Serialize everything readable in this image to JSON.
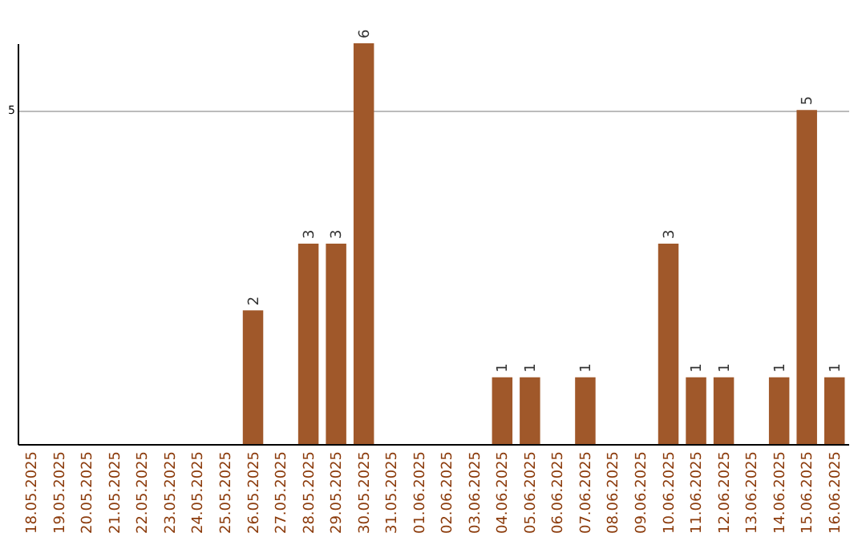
{
  "chart_data": {
    "type": "bar",
    "categories": [
      "18.05.2025",
      "19.05.2025",
      "20.05.2025",
      "21.05.2025",
      "22.05.2025",
      "23.05.2025",
      "24.05.2025",
      "25.05.2025",
      "26.05.2025",
      "27.05.2025",
      "28.05.2025",
      "29.05.2025",
      "30.05.2025",
      "31.05.2025",
      "01.06.2025",
      "02.06.2025",
      "03.06.2025",
      "04.06.2025",
      "05.06.2025",
      "06.06.2025",
      "07.06.2025",
      "08.06.2025",
      "09.06.2025",
      "10.06.2025",
      "11.06.2025",
      "12.06.2025",
      "13.06.2025",
      "14.06.2025",
      "15.06.2025",
      "16.06.2025"
    ],
    "values": [
      0,
      0,
      0,
      0,
      0,
      0,
      0,
      0,
      2,
      0,
      3,
      3,
      6,
      0,
      0,
      0,
      0,
      1,
      1,
      0,
      1,
      0,
      0,
      3,
      1,
      1,
      0,
      1,
      5,
      1
    ],
    "value_labels": [
      null,
      null,
      null,
      null,
      null,
      null,
      null,
      null,
      "2",
      null,
      "3",
      "3",
      "6",
      null,
      null,
      null,
      null,
      "1",
      "1",
      null,
      "1",
      null,
      null,
      "3",
      "1",
      "1",
      null,
      "1",
      "5",
      "1"
    ],
    "color": "#a0582a",
    "ylim": [
      0,
      6
    ],
    "yticks": [
      5
    ],
    "grid": "y"
  }
}
